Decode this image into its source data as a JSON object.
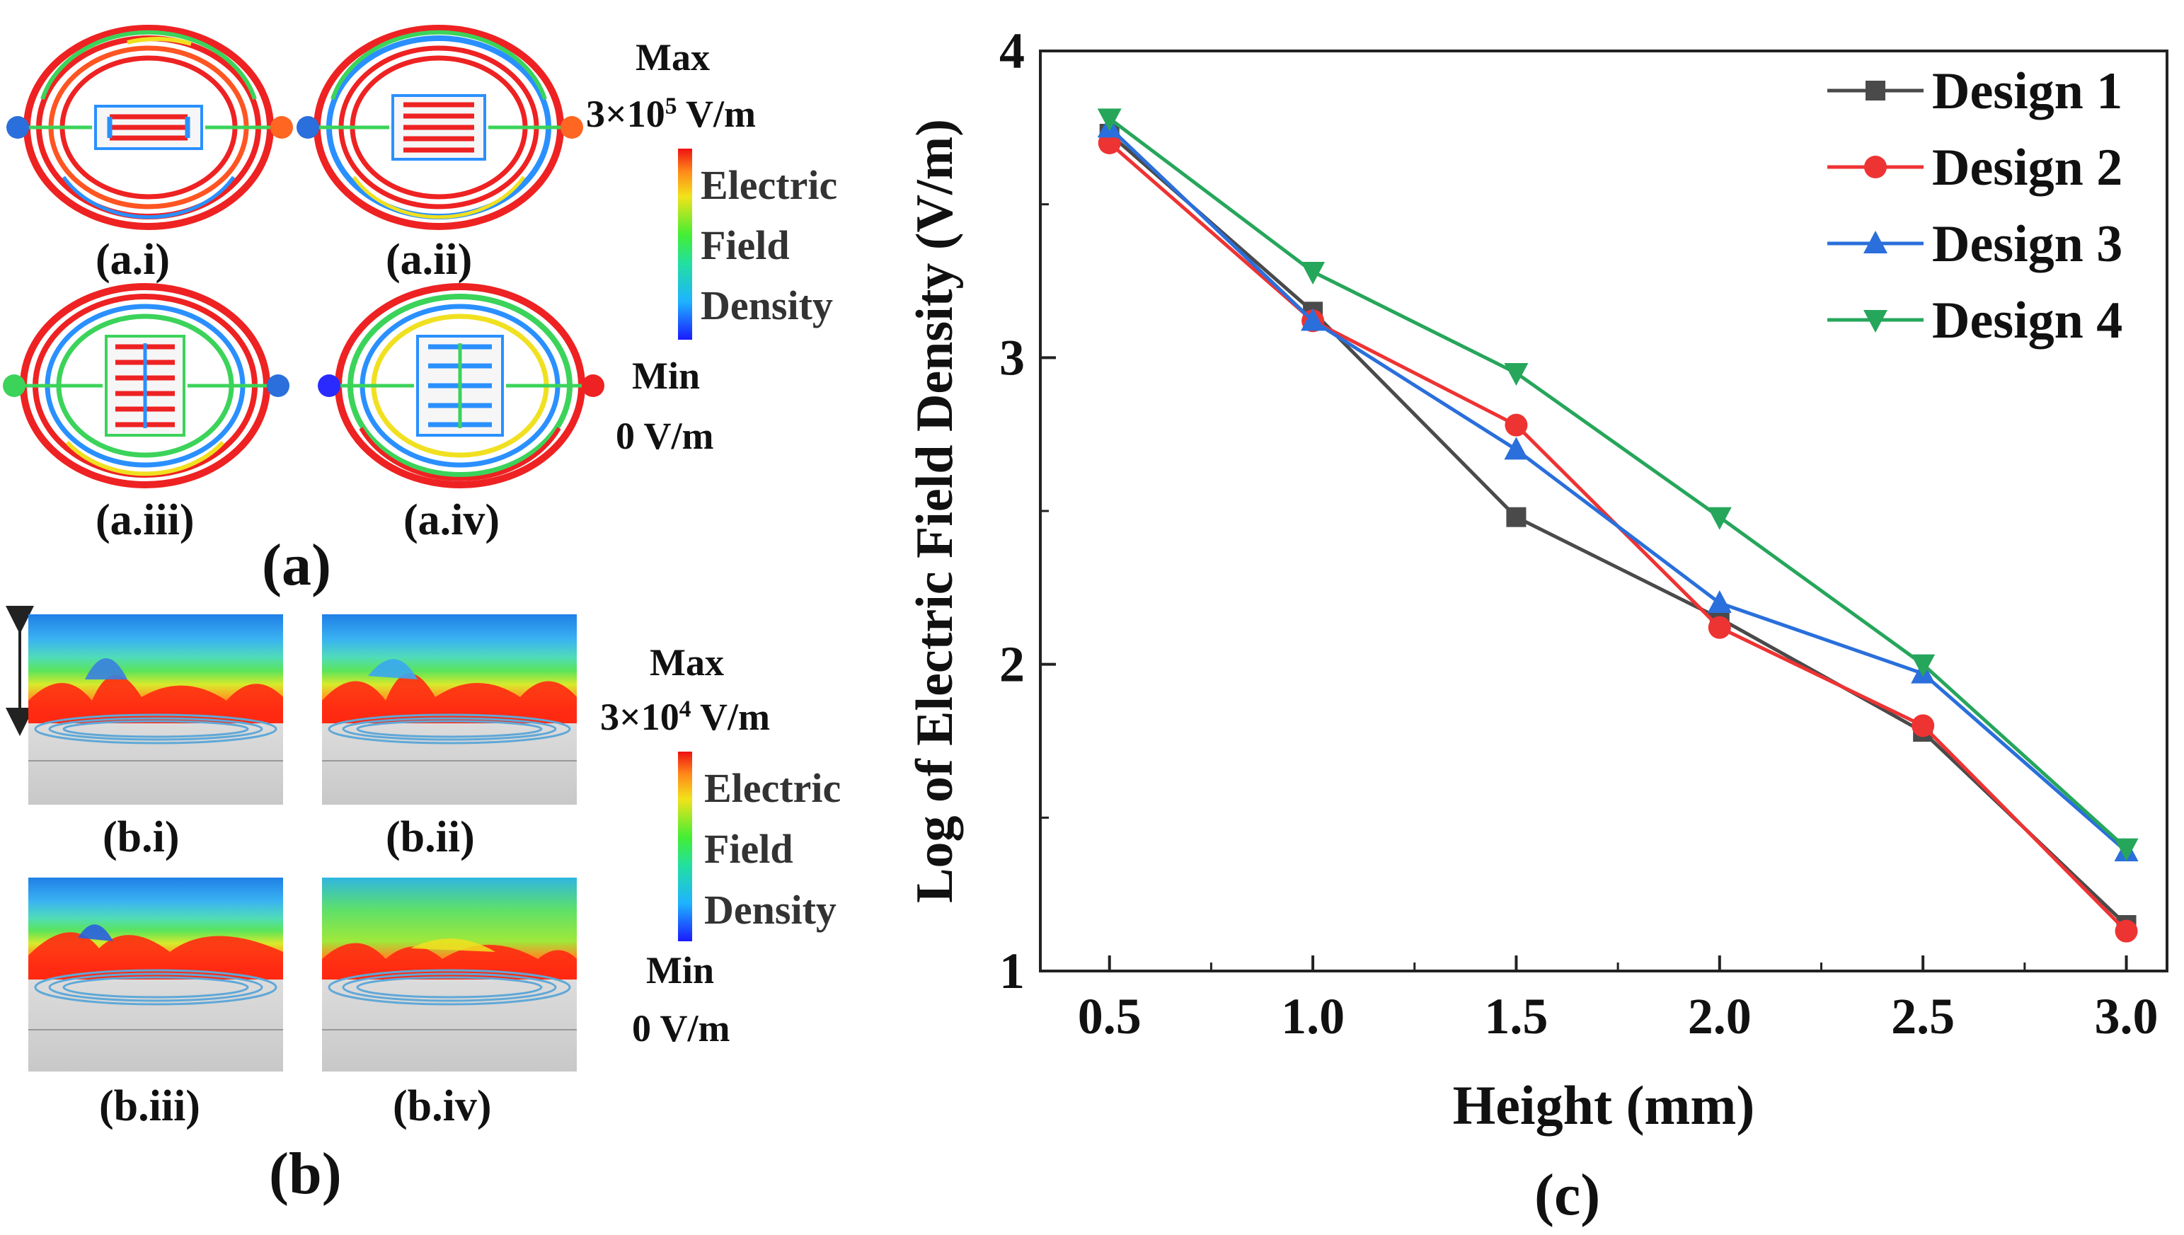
{
  "panel_a": {
    "captions": [
      "(a.i)",
      "(a.ii)",
      "(a.iii)",
      "(a.iv)"
    ],
    "panel_label": "(a)",
    "scale": {
      "max_label": "Max",
      "max_value_base": "3×10",
      "max_value_exp": "5",
      "max_value_unit": " V/m",
      "bar_label": [
        "Electric",
        "Field",
        "Density"
      ],
      "min_label": "Min",
      "min_value": "0 V/m"
    }
  },
  "panel_b": {
    "captions": [
      "(b.i)",
      "(b.ii)",
      "(b.iii)",
      "(b.iv)"
    ],
    "panel_label": "(b)",
    "scale": {
      "max_label": "Max",
      "max_value_base": "3×10",
      "max_value_exp": "4",
      "max_value_unit": " V/m",
      "bar_label": [
        "Electric",
        "Field",
        "Density"
      ],
      "min_label": "Min",
      "min_value": "0 V/m"
    }
  },
  "panel_c": {
    "panel_label": "(c)"
  },
  "chart_data": {
    "type": "line",
    "title": "",
    "xlabel": "Height (mm)",
    "ylabel": "Log of Electric Field Density (V/m)",
    "x": [
      0.5,
      1.0,
      1.5,
      2.0,
      2.5,
      3.0
    ],
    "x_tick_labels": [
      "0.5",
      "1.0",
      "1.5",
      "2.0",
      "2.5",
      "3.0"
    ],
    "xlim": [
      0.33,
      3.1
    ],
    "ylim": [
      1,
      4
    ],
    "y_ticks": [
      1,
      2,
      3,
      4
    ],
    "y_tick_labels": [
      "1",
      "2",
      "3",
      "4"
    ],
    "legend_position": "top-right",
    "series": [
      {
        "name": "Design 1",
        "color": "#4a4a4a",
        "marker": "square",
        "values": [
          3.73,
          3.15,
          2.48,
          2.15,
          1.78,
          1.15
        ]
      },
      {
        "name": "Design 2",
        "color": "#ee3333",
        "marker": "circle",
        "values": [
          3.7,
          3.12,
          2.78,
          2.12,
          1.8,
          1.13
        ]
      },
      {
        "name": "Design 3",
        "color": "#2a6fdb",
        "marker": "triangle-up",
        "values": [
          3.75,
          3.12,
          2.7,
          2.2,
          1.97,
          1.39
        ]
      },
      {
        "name": "Design 4",
        "color": "#26a65b",
        "marker": "triangle-down",
        "values": [
          3.78,
          3.28,
          2.95,
          2.48,
          2.0,
          1.4
        ]
      }
    ]
  }
}
